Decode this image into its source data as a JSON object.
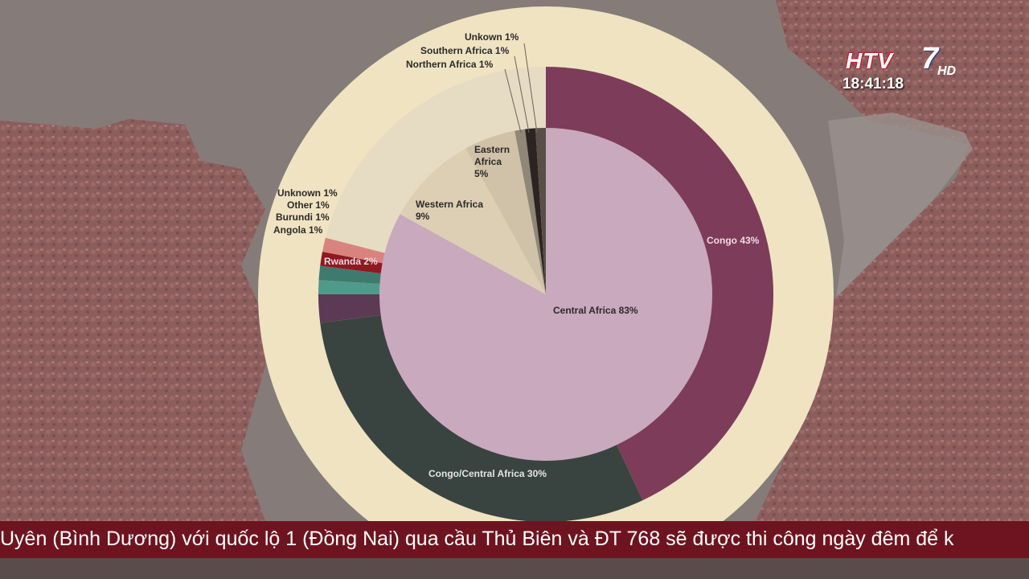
{
  "broadcast": {
    "channel_logo": "HTV7 HD",
    "clock": "18:41:18",
    "ticker": "Uyên (Bình Dương) với quốc lộ 1 (Đồng Nai) qua cầu Thủ Biên và ĐT 768 sẽ được thi công ngày đêm để k"
  },
  "colors": {
    "background": "#7f7673",
    "map_texture": "#8a5a5a",
    "disc": "#efe3c2",
    "ticker_bg": "#6e1420"
  },
  "chart_data": {
    "type": "pie",
    "rings": [
      {
        "ring": "inner",
        "series": [
          {
            "name": "Central Africa",
            "label": "Central Africa 83%",
            "value": 83,
            "color": "#c9a9bd"
          },
          {
            "name": "Western Africa",
            "label": "Western Africa\n9%",
            "value": 9,
            "color": "#dccfb4"
          },
          {
            "name": "Eastern Africa",
            "label": "Eastern\nAfrica\n5%",
            "value": 5,
            "color": "#cfc2a8"
          },
          {
            "name": "Northern Africa",
            "label": "Northern Africa 1%",
            "value": 1,
            "color": "#8f8777"
          },
          {
            "name": "Southern Africa",
            "label": "Southern Africa 1%",
            "value": 1,
            "color": "#2b2422"
          },
          {
            "name": "Unkown",
            "label": "Unkown 1%",
            "value": 1,
            "color": "#5a4f48"
          }
        ]
      },
      {
        "ring": "outer",
        "series": [
          {
            "name": "Congo",
            "label": "Congo 43%",
            "value": 43,
            "color": "#7d3c5a"
          },
          {
            "name": "Congo/Central Africa",
            "label": "Congo/Central Africa 30%",
            "value": 30,
            "color": "#394440"
          },
          {
            "name": "Rwanda",
            "label": "Rwanda 2%",
            "value": 2,
            "color": "#5c3a55"
          },
          {
            "name": "Angola",
            "label": "Angola 1%",
            "value": 1,
            "color": "#4f9a8a"
          },
          {
            "name": "Burundi",
            "label": "Burundi 1%",
            "value": 1,
            "color": "#3f7a6e"
          },
          {
            "name": "Other",
            "label": "Other 1%",
            "value": 1,
            "color": "#8e1a1f"
          },
          {
            "name": "Unknown",
            "label": "Unknown 1%",
            "value": 1,
            "color": "#d9837f"
          },
          {
            "name": "unlabeled-remainder",
            "label": "",
            "value": 21,
            "color": "#e6dcc4"
          }
        ]
      }
    ]
  }
}
